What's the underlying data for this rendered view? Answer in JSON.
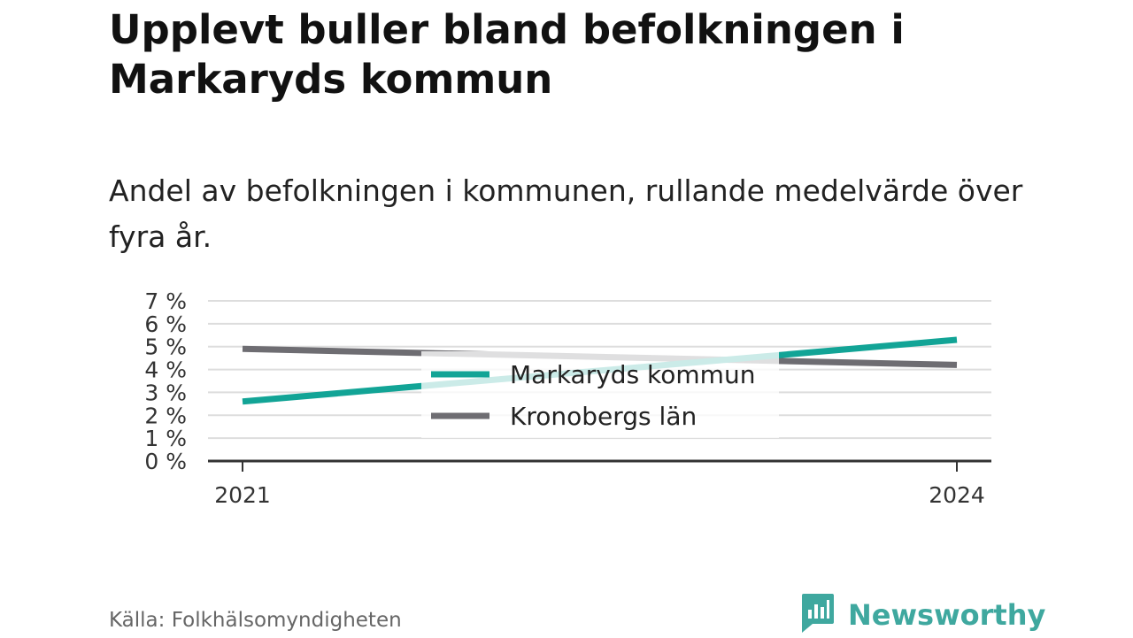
{
  "title": "Upplevt buller bland befolkningen i Markaryds kommun",
  "subtitle": "Andel av befolkningen i kommunen, rullande medelvärde över fyra år.",
  "source": "Källa: Folkhälsomyndigheten",
  "brand": {
    "name": "Newsworthy",
    "icon": "newsworthy-logo-icon",
    "color": "#3fa89f"
  },
  "chart_data": {
    "type": "line",
    "x": [
      2021,
      2024
    ],
    "x_tick_labels": [
      "2021",
      "2024"
    ],
    "ylim": [
      0,
      7
    ],
    "y_ticks": [
      0,
      1,
      2,
      3,
      4,
      5,
      6,
      7
    ],
    "y_tick_labels": [
      "0 %",
      "1 %",
      "2 %",
      "3 %",
      "4 %",
      "5 %",
      "6 %",
      "7 %"
    ],
    "grid": true,
    "legend_position": "center",
    "series": [
      {
        "name": "Markaryds kommun",
        "values": [
          2.6,
          5.3
        ],
        "color": "#12a496"
      },
      {
        "name": "Kronobergs län",
        "values": [
          4.9,
          4.2
        ],
        "color": "#6e6d72"
      }
    ]
  }
}
